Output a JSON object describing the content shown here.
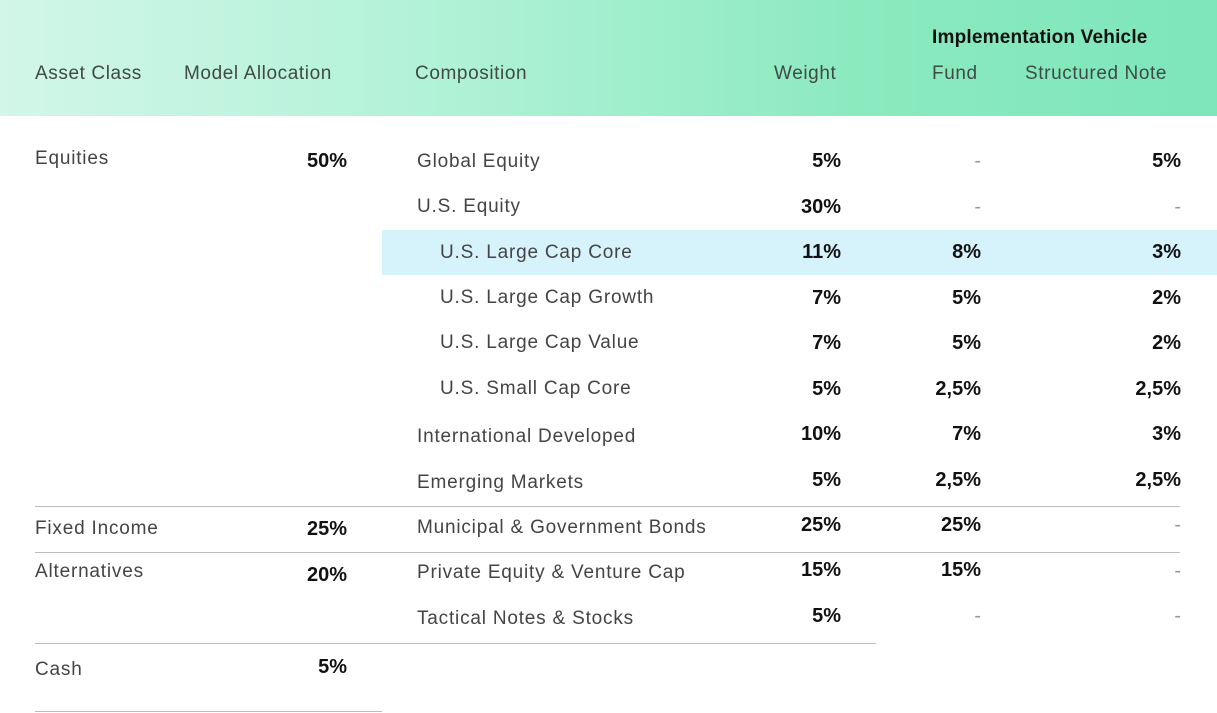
{
  "header": {
    "implementation_vehicle": "Implementation Vehicle",
    "asset_class": "Asset Class",
    "model_allocation": "Model Allocation",
    "composition": "Composition",
    "weight": "Weight",
    "fund": "Fund",
    "structured_note": "Structured Note"
  },
  "asset_classes": [
    {
      "name": "Equities",
      "allocation": "50%"
    },
    {
      "name": "Fixed Income",
      "allocation": "25%"
    },
    {
      "name": "Alternatives",
      "allocation": "20%"
    },
    {
      "name": "Cash",
      "allocation": "5%"
    }
  ],
  "rows": [
    {
      "composition": "Global Equity",
      "weight": "5%",
      "fund": "-",
      "note": "5%"
    },
    {
      "composition": "U.S. Equity",
      "weight": "30%",
      "fund": "-",
      "note": "-"
    },
    {
      "composition": "U.S. Large Cap Core",
      "weight": "11%",
      "fund": "8%",
      "note": "3%"
    },
    {
      "composition": "U.S. Large Cap Growth",
      "weight": "7%",
      "fund": "5%",
      "note": "2%"
    },
    {
      "composition": "U.S. Large Cap Value",
      "weight": "7%",
      "fund": "5%",
      "note": "2%"
    },
    {
      "composition": "U.S. Small Cap Core",
      "weight": "5%",
      "fund": "2,5%",
      "note": "2,5%"
    },
    {
      "composition": "International Developed",
      "weight": "10%",
      "fund": "7%",
      "note": "3%"
    },
    {
      "composition": "Emerging Markets",
      "weight": "5%",
      "fund": "2,5%",
      "note": "2,5%"
    },
    {
      "composition": "Municipal & Government Bonds",
      "weight": "25%",
      "fund": "25%",
      "note": "-"
    },
    {
      "composition": "Private Equity & Venture Cap",
      "weight": "15%",
      "fund": "15%",
      "note": "-"
    },
    {
      "composition": "Tactical Notes & Stocks",
      "weight": "5%",
      "fund": "-",
      "note": "-"
    }
  ],
  "colors": {
    "header_gradient_start": "#d2f6e9",
    "header_gradient_end": "#7de6ba",
    "highlight_row": "#d6f3fb"
  }
}
